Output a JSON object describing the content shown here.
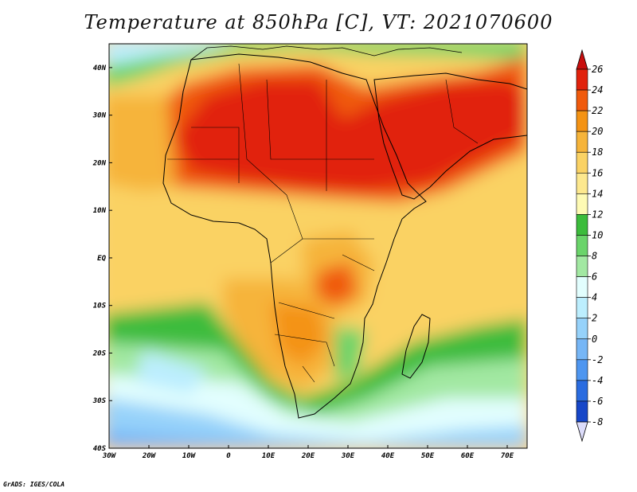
{
  "title": "Temperature at 850hPa [C], VT: 2021070600",
  "credit": "GrADS: IGES/COLA",
  "map": {
    "lon_range": [
      -30,
      75
    ],
    "lat_range": [
      -40,
      45
    ],
    "lon_ticks": [
      {
        "value": -30,
        "label": "30W"
      },
      {
        "value": -20,
        "label": "20W"
      },
      {
        "value": -10,
        "label": "10W"
      },
      {
        "value": 0,
        "label": "0"
      },
      {
        "value": 10,
        "label": "10E"
      },
      {
        "value": 20,
        "label": "20E"
      },
      {
        "value": 30,
        "label": "30E"
      },
      {
        "value": 40,
        "label": "40E"
      },
      {
        "value": 50,
        "label": "50E"
      },
      {
        "value": 60,
        "label": "60E"
      },
      {
        "value": 70,
        "label": "70E"
      }
    ],
    "lat_ticks": [
      {
        "value": 40,
        "label": "40N"
      },
      {
        "value": 30,
        "label": "30N"
      },
      {
        "value": 20,
        "label": "20N"
      },
      {
        "value": 10,
        "label": "10N"
      },
      {
        "value": 0,
        "label": "EQ"
      },
      {
        "value": -10,
        "label": "10S"
      },
      {
        "value": -20,
        "label": "20S"
      },
      {
        "value": -30,
        "label": "30S"
      },
      {
        "value": -40,
        "label": "40S"
      }
    ]
  },
  "colorbar": {
    "levels": [
      "26",
      "24",
      "22",
      "20",
      "18",
      "16",
      "14",
      "12",
      "10",
      "8",
      "6",
      "4",
      "2",
      "0",
      "-2",
      "-4",
      "-6",
      "-8"
    ],
    "colors": [
      "#e1220c",
      "#f05a0c",
      "#f49314",
      "#f6b43a",
      "#fad264",
      "#fde88e",
      "#fefab4",
      "#3cbc3c",
      "#6ad46a",
      "#a2e8a2",
      "#e2fefe",
      "#bceefe",
      "#96d2fa",
      "#76b6f6",
      "#4e96f0",
      "#2a6ce0",
      "#1646c8",
      "#0c2290"
    ],
    "top_color": "#c80e0e",
    "bottom_color": "#dcdcfa"
  }
}
